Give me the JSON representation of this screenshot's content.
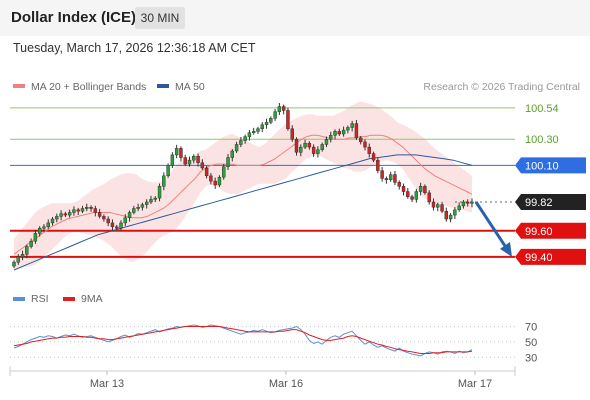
{
  "header": {
    "title": "Dollar Index (ICE)",
    "timeframe": "30 MIN",
    "datetime": "Tuesday, March 17, 2026 12:36:18 AM CET"
  },
  "legend": {
    "items": [
      {
        "label": "MA 20 + Bollinger Bands",
        "color": "#f08080"
      },
      {
        "label": "MA 50",
        "color": "#2a5a9a"
      }
    ],
    "credit": "Research © 2026 Trading Central"
  },
  "chart_data": [
    {
      "type": "candlestick",
      "x_ticks": [
        "Mar 13",
        "Mar 16",
        "Mar 17"
      ],
      "ylim": [
        99.3,
        100.6
      ],
      "levels": [
        {
          "value": 100.54,
          "label": "100.54",
          "kind": "resistance"
        },
        {
          "value": 100.3,
          "label": "100.30",
          "kind": "resistance"
        },
        {
          "value": 100.1,
          "label": "100.10",
          "kind": "pivot"
        },
        {
          "value": 99.82,
          "label": "99.82",
          "kind": "last"
        },
        {
          "value": 99.6,
          "label": "99.60",
          "kind": "support"
        },
        {
          "value": 99.4,
          "label": "99.40",
          "kind": "support"
        }
      ],
      "close": [
        99.36,
        99.4,
        99.42,
        99.48,
        99.52,
        99.58,
        99.62,
        99.63,
        99.66,
        99.69,
        99.71,
        99.73,
        99.72,
        99.74,
        99.76,
        99.75,
        99.77,
        99.78,
        99.77,
        99.74,
        99.71,
        99.69,
        99.66,
        99.63,
        99.62,
        99.66,
        99.7,
        99.74,
        99.77,
        99.78,
        99.8,
        99.82,
        99.84,
        99.85,
        99.94,
        100.02,
        100.1,
        100.18,
        100.23,
        100.16,
        100.11,
        100.14,
        100.17,
        100.12,
        100.08,
        100.02,
        99.98,
        99.95,
        100.01,
        100.09,
        100.16,
        100.21,
        100.26,
        100.29,
        100.32,
        100.35,
        100.36,
        100.38,
        100.41,
        100.43,
        100.46,
        100.51,
        100.55,
        100.52,
        100.38,
        100.3,
        100.2,
        100.24,
        100.27,
        100.24,
        100.19,
        100.22,
        100.26,
        100.3,
        100.33,
        100.36,
        100.34,
        100.37,
        100.39,
        100.42,
        100.31,
        100.28,
        100.24,
        100.19,
        100.14,
        100.06,
        100.0,
        99.99,
        100.03,
        99.97,
        99.94,
        99.9,
        99.86,
        99.84,
        99.9,
        99.94,
        99.89,
        99.82,
        99.78,
        99.8,
        99.75,
        99.69,
        99.72,
        99.76,
        99.79,
        99.82,
        99.81,
        99.82
      ],
      "ma20": [
        99.42,
        99.45,
        99.48,
        99.51,
        99.54,
        99.57,
        99.6,
        99.63,
        99.65,
        99.67,
        99.69,
        99.7,
        99.71,
        99.72,
        99.73,
        99.74,
        99.74,
        99.74,
        99.74,
        99.73,
        99.72,
        99.71,
        99.7,
        99.7,
        99.7,
        99.71,
        99.73,
        99.75,
        99.77,
        99.8,
        99.84,
        99.88,
        99.92,
        99.96,
        100.0,
        100.05,
        100.08,
        100.1,
        100.11,
        100.11,
        100.11,
        100.11,
        100.1,
        100.1,
        100.1,
        100.1,
        100.1,
        100.11,
        100.13,
        100.15,
        100.18,
        100.21,
        100.24,
        100.27,
        100.3,
        100.32,
        100.33,
        100.33,
        100.32,
        100.31,
        100.3,
        100.3,
        100.3,
        100.31,
        100.31,
        100.32,
        100.32,
        100.33,
        100.33,
        100.33,
        100.32,
        100.3,
        100.27,
        100.24,
        100.2,
        100.16,
        100.12,
        100.08,
        100.05,
        100.02,
        100.0,
        99.98,
        99.96,
        99.94,
        99.92,
        99.9,
        99.88
      ],
      "ma50": [
        99.3,
        99.33,
        99.36,
        99.39,
        99.42,
        99.45,
        99.48,
        99.51,
        99.54,
        99.57,
        99.59,
        99.61,
        99.63,
        99.65,
        99.67,
        99.69,
        99.71,
        99.73,
        99.75,
        99.77,
        99.79,
        99.81,
        99.83,
        99.85,
        99.87,
        99.89,
        99.91,
        99.93,
        99.95,
        99.97,
        99.99,
        100.01,
        100.03,
        100.05,
        100.07,
        100.09,
        100.11,
        100.13,
        100.15,
        100.16,
        100.17,
        100.18,
        100.18,
        100.18,
        100.17,
        100.16,
        100.15,
        100.14,
        100.12,
        100.1
      ],
      "bb_width": [
        0.12,
        0.14,
        0.16,
        0.18,
        0.2,
        0.2,
        0.19,
        0.18,
        0.16,
        0.14,
        0.12,
        0.11,
        0.12,
        0.14,
        0.16,
        0.18,
        0.2,
        0.22,
        0.25,
        0.28,
        0.31,
        0.33,
        0.34,
        0.33,
        0.3,
        0.27,
        0.24,
        0.22,
        0.21,
        0.22,
        0.24,
        0.24,
        0.22,
        0.2,
        0.18,
        0.16,
        0.14,
        0.15,
        0.17,
        0.2,
        0.22,
        0.23,
        0.22,
        0.2,
        0.18,
        0.16,
        0.14,
        0.15,
        0.17,
        0.19,
        0.2,
        0.21,
        0.2,
        0.19,
        0.18,
        0.17,
        0.16,
        0.15,
        0.16,
        0.17,
        0.18,
        0.2,
        0.22,
        0.24,
        0.26,
        0.27,
        0.26,
        0.24,
        0.22,
        0.2,
        0.18,
        0.17,
        0.16,
        0.17,
        0.19,
        0.21,
        0.22,
        0.23,
        0.22,
        0.21,
        0.2,
        0.19,
        0.18,
        0.17,
        0.16,
        0.15,
        0.14
      ]
    },
    {
      "type": "line",
      "series": [
        {
          "name": "RSI",
          "color": "#5b8fd6"
        },
        {
          "name": "9MA",
          "color": "#e02020"
        }
      ],
      "y_ticks": [
        70,
        50,
        30
      ],
      "ylim": [
        20,
        85
      ],
      "rsi": [
        42,
        44,
        47,
        50,
        53,
        55,
        57,
        56,
        58,
        57,
        55,
        57,
        59,
        58,
        60,
        58,
        56,
        57,
        58,
        56,
        54,
        52,
        50,
        52,
        54,
        57,
        59,
        56,
        58,
        61,
        60,
        62,
        64,
        66,
        63,
        65,
        67,
        68,
        70,
        69,
        70,
        71,
        72,
        71,
        69,
        70,
        72,
        71,
        70,
        68,
        66,
        64,
        62,
        60,
        62,
        63,
        65,
        64,
        66,
        64,
        62,
        63,
        65,
        66,
        67,
        68,
        70,
        66,
        60,
        52,
        48,
        50,
        47,
        52,
        56,
        58,
        56,
        60,
        62,
        64,
        58,
        52,
        47,
        50,
        46,
        43,
        45,
        42,
        40,
        38,
        42,
        38,
        36,
        34,
        33,
        32,
        35,
        37,
        36,
        34,
        37,
        38,
        37,
        35,
        38,
        36,
        37,
        40
      ],
      "ma9": [
        45,
        46,
        47,
        48,
        50,
        51,
        52,
        53,
        54,
        55,
        55,
        56,
        56,
        57,
        57,
        57,
        57,
        56,
        56,
        55,
        54,
        54,
        53,
        53,
        54,
        55,
        56,
        57,
        58,
        59,
        60,
        61,
        62,
        63,
        64,
        65,
        66,
        67,
        68,
        69,
        70,
        70,
        70,
        70,
        70,
        70,
        70,
        70,
        70,
        69,
        68,
        67,
        66,
        65,
        64,
        63,
        63,
        63,
        63,
        63,
        63,
        63,
        64,
        64,
        65,
        66,
        66,
        64,
        62,
        59,
        57,
        55,
        53,
        52,
        52,
        53,
        54,
        55,
        57,
        58,
        57,
        55,
        53,
        51,
        49,
        47,
        46,
        44,
        43,
        41,
        40,
        39,
        38,
        37,
        36,
        35,
        35,
        35,
        36,
        36,
        36,
        37,
        37,
        37,
        37,
        37,
        37,
        38
      ]
    }
  ]
}
